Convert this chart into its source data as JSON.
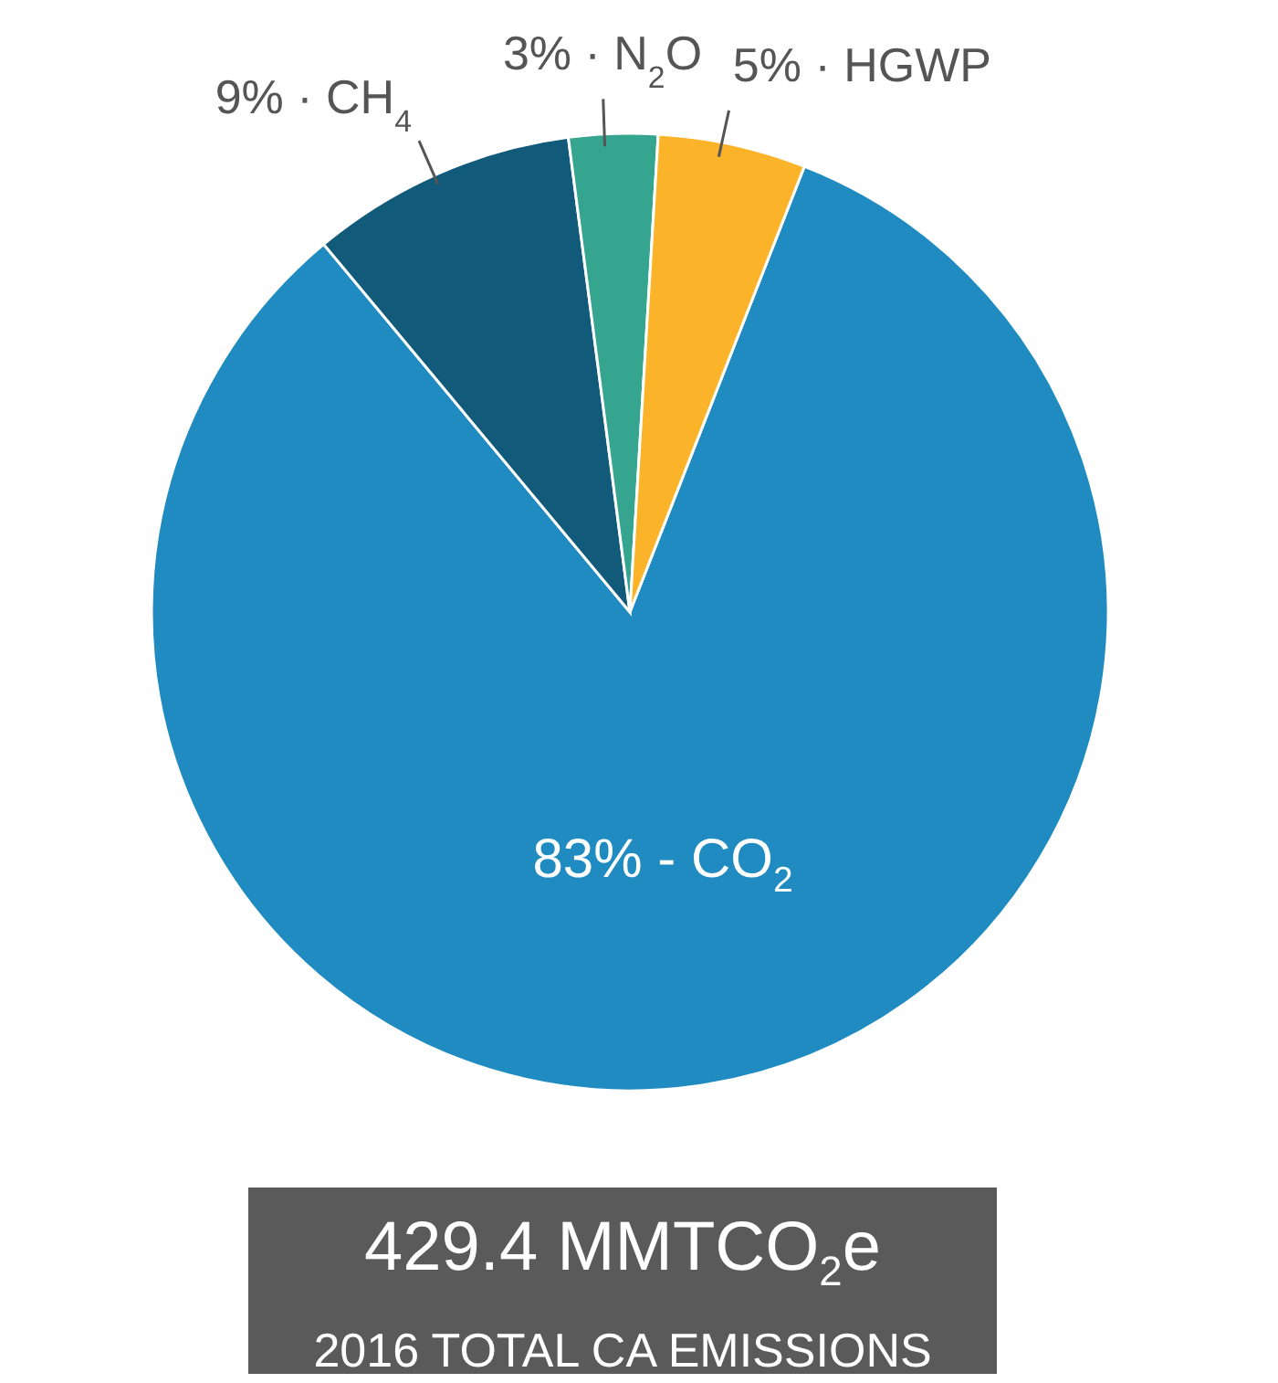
{
  "chart_data": {
    "type": "pie",
    "categories": [
      "83% - CO$_{2}$",
      "9% · CH$_{4}$",
      "3% · N$_{2}$O",
      "5% · HGWP"
    ],
    "values": [
      83,
      9,
      3,
      5
    ],
    "colors": [
      "#1f8bc0",
      "#125a7a",
      "#36a58f",
      "#fbb32a"
    ],
    "annotations": [
      "429.4 MMTCO$_{2}$e",
      "2016 TOTAL CA EMISSIONS"
    ]
  }
}
